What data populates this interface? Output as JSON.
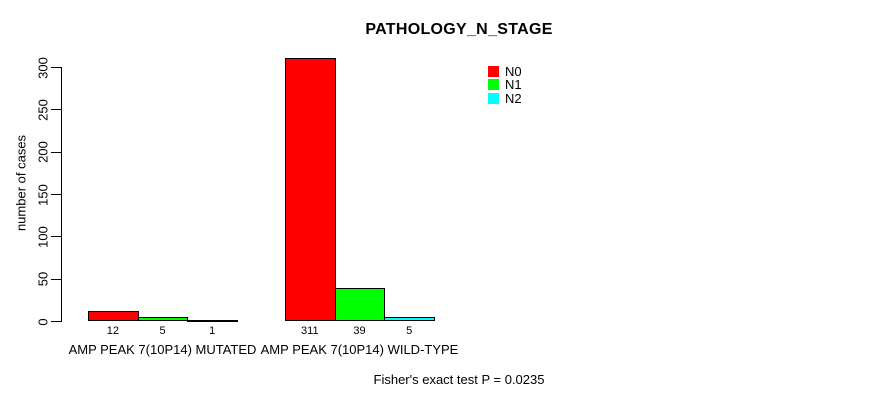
{
  "chart_data": {
    "type": "bar",
    "title": "PATHOLOGY_N_STAGE",
    "ylabel": "number of cases",
    "xlabel": "",
    "categories": [
      "AMP PEAK 7(10P14) MUTATED",
      "AMP PEAK 7(10P14) WILD-TYPE"
    ],
    "series": [
      {
        "name": "N0",
        "color": "#ff0000",
        "values": [
          12,
          311
        ]
      },
      {
        "name": "N1",
        "color": "#00ff00",
        "values": [
          5,
          39
        ]
      },
      {
        "name": "N2",
        "color": "#00ffff",
        "values": [
          1,
          5
        ]
      }
    ],
    "ylim": [
      0,
      300
    ],
    "yticks": [
      0,
      50,
      100,
      150,
      200,
      250,
      300
    ],
    "grid": false,
    "legend_position": "top-right",
    "bar_value_labels_shown": true,
    "annotation": "Fisher's exact test P = 0.0235"
  },
  "colors": {
    "axis": "#000000",
    "text": "#000000",
    "background": "#ffffff",
    "bar_border": "#000000"
  }
}
